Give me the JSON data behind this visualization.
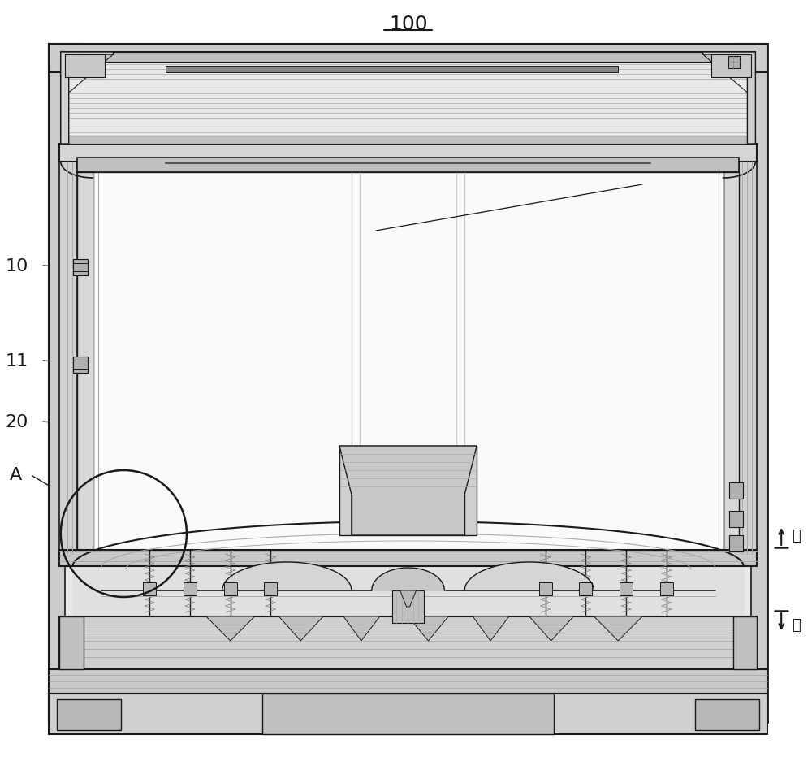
{
  "title": "100",
  "bg_color": "#ffffff",
  "lc": "#1a1a1a",
  "lc2": "#333333",
  "gray1": "#888888",
  "gray2": "#aaaaaa",
  "gray3": "#cccccc",
  "gray4": "#e0e0e0",
  "gray5": "#f0f0f0",
  "figsize": [
    10.0,
    9.54
  ],
  "dpi": 100,
  "up_label": "上",
  "down_label": "下"
}
